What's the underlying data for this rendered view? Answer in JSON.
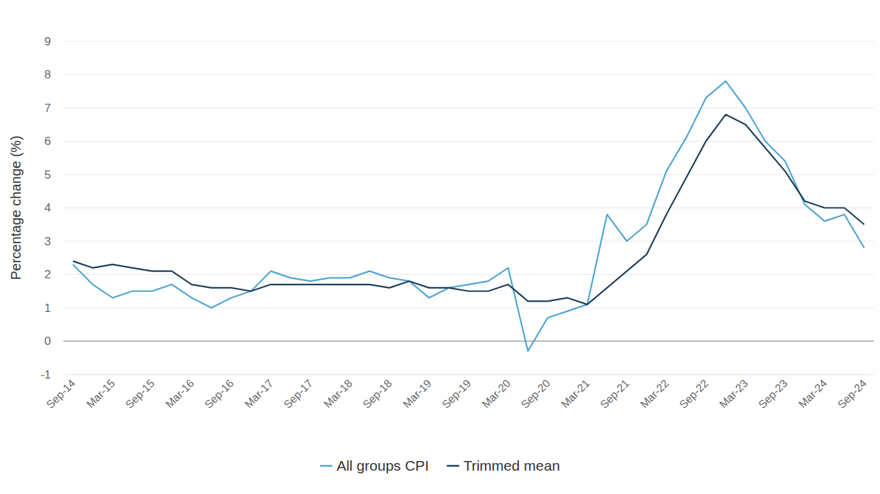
{
  "chart_data": {
    "type": "line",
    "y_label": "Percentage change (%)",
    "categories": [
      "Sep-14",
      null,
      "Mar-15",
      null,
      "Sep-15",
      null,
      "Mar-16",
      null,
      "Sep-16",
      null,
      "Mar-17",
      null,
      "Sep-17",
      null,
      "Mar-18",
      null,
      "Sep-18",
      null,
      "Mar-19",
      null,
      "Sep-19",
      null,
      "Mar-20",
      null,
      "Sep-20",
      null,
      "Mar-21",
      null,
      "Sep-21",
      null,
      "Mar-22",
      null,
      "Sep-22",
      null,
      "Mar-23",
      null,
      "Sep-23",
      null,
      "Mar-24",
      null,
      "Sep-24"
    ],
    "series": [
      {
        "name": "All groups CPI",
        "color": "#4ea5d0",
        "values": [
          2.3,
          1.7,
          1.3,
          1.5,
          1.5,
          1.7,
          1.3,
          1.0,
          1.3,
          1.5,
          2.1,
          1.9,
          1.8,
          1.9,
          1.9,
          2.1,
          1.9,
          1.8,
          1.3,
          1.6,
          1.7,
          1.8,
          2.2,
          -0.3,
          0.7,
          0.9,
          1.1,
          3.8,
          3.0,
          3.5,
          5.1,
          6.1,
          7.3,
          7.8,
          7.0,
          6.0,
          5.4,
          4.1,
          3.6,
          3.8,
          2.8
        ]
      },
      {
        "name": "Trimmed mean",
        "color": "#1c3d5a",
        "values": [
          2.4,
          2.2,
          2.3,
          2.2,
          2.1,
          2.1,
          1.7,
          1.6,
          1.6,
          1.5,
          1.7,
          1.7,
          1.7,
          1.7,
          1.7,
          1.7,
          1.6,
          1.8,
          1.6,
          1.6,
          1.5,
          1.5,
          1.7,
          1.2,
          1.2,
          1.3,
          1.1,
          1.6,
          2.1,
          2.6,
          3.8,
          4.9,
          6.0,
          6.8,
          6.5,
          5.8,
          5.1,
          4.2,
          4.0,
          4.0,
          3.5
        ]
      }
    ],
    "ylim": [
      -1,
      9
    ],
    "yticks": [
      -1,
      0,
      1,
      2,
      3,
      4,
      5,
      6,
      7,
      8,
      9
    ],
    "grid": true,
    "legend": "bottom"
  }
}
